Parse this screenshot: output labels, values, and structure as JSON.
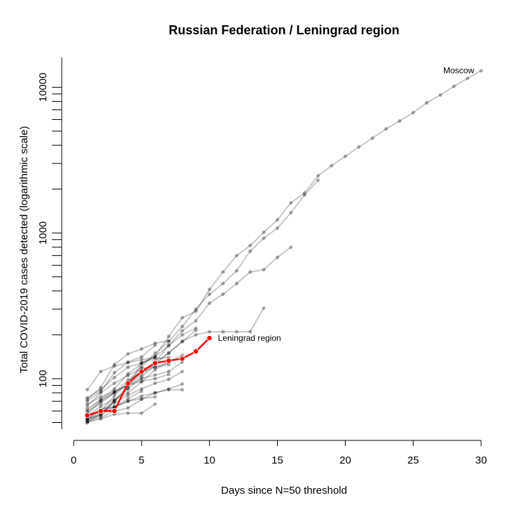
{
  "chart_data": {
    "type": "line",
    "title": "Russian Federation / Leningrad region",
    "xlabel": "Days since N=50 threshold",
    "ylabel": "Total COVID-2019 cases detected (logarithmic scale)",
    "y_scale": "log",
    "xlim": [
      0,
      30
    ],
    "ylim": [
      45,
      16000
    ],
    "x_ticks": [
      0,
      5,
      10,
      15,
      20,
      25,
      30
    ],
    "y_tick_labels": [
      100,
      1000,
      10000
    ],
    "y_minor_ticks": [
      50,
      60,
      70,
      80,
      90,
      200,
      300,
      400,
      500,
      600,
      700,
      800,
      900,
      2000,
      3000,
      4000,
      5000,
      6000,
      7000,
      8000,
      9000
    ],
    "grid": false,
    "highlight_color": "#ff0000",
    "background_color": "#000000",
    "annotations": [
      {
        "text": "Moscow",
        "series": "Moscow"
      },
      {
        "text": "Leningrad region",
        "series": "Leningrad region"
      }
    ],
    "series": [
      {
        "name": "Moscow",
        "highlight": false,
        "x": [
          1,
          2,
          3,
          4,
          5,
          6,
          7,
          8,
          9,
          10,
          11,
          12,
          13,
          14,
          15,
          16,
          17,
          18,
          19,
          20,
          21,
          22,
          23,
          24,
          25,
          26,
          27,
          28,
          29,
          30
        ],
        "y": [
          51,
          56,
          71,
          86,
          129,
          142,
          195,
          262,
          290,
          410,
          540,
          700,
          820,
          1010,
          1230,
          1610,
          1880,
          2470,
          2900,
          3360,
          3890,
          4480,
          5180,
          5870,
          6700,
          7820,
          8850,
          10160,
          11510,
          13000
        ]
      },
      {
        "name": "",
        "highlight": false,
        "x": [
          1,
          2,
          3,
          4,
          5,
          6,
          7,
          8,
          9,
          10,
          11,
          12,
          13,
          14,
          15,
          16,
          17,
          18
        ],
        "y": [
          52,
          60,
          76,
          95,
          120,
          150,
          180,
          228,
          300,
          380,
          450,
          550,
          750,
          920,
          1080,
          1380,
          1820,
          2300
        ]
      },
      {
        "name": "",
        "highlight": false,
        "x": [
          1,
          2,
          3,
          4,
          5,
          6,
          7,
          8,
          9,
          10,
          11,
          12,
          13,
          14,
          15,
          16
        ],
        "y": [
          54,
          60,
          70,
          90,
          106,
          130,
          170,
          213,
          250,
          330,
          380,
          450,
          540,
          560,
          680,
          800
        ]
      },
      {
        "name": "",
        "highlight": false,
        "x": [
          1,
          2,
          3,
          4,
          5,
          6,
          7,
          8,
          9,
          10,
          11,
          12,
          13,
          14
        ],
        "y": [
          53,
          57,
          70,
          85,
          102,
          125,
          150,
          180,
          200,
          210,
          210,
          210,
          210,
          305
        ]
      },
      {
        "name": "",
        "highlight": false,
        "x": [
          1,
          2,
          3,
          4,
          5,
          6,
          7,
          8,
          9
        ],
        "y": [
          59,
          68,
          80,
          92,
          110,
          130,
          150,
          180,
          215
        ]
      },
      {
        "name": "",
        "highlight": false,
        "x": [
          1,
          2,
          3,
          4,
          5,
          6,
          7,
          8,
          9
        ],
        "y": [
          62,
          72,
          85,
          108,
          127,
          142,
          168,
          200,
          222
        ]
      },
      {
        "name": "",
        "highlight": false,
        "x": [
          1,
          2,
          3,
          4,
          5,
          6,
          7,
          8
        ],
        "y": [
          55,
          65,
          72,
          80,
          95,
          115,
          130,
          145
        ]
      },
      {
        "name": "",
        "highlight": false,
        "x": [
          1,
          2,
          3,
          4,
          5,
          6,
          7,
          8
        ],
        "y": [
          50,
          58,
          68,
          77,
          85,
          93,
          99,
          112
        ]
      },
      {
        "name": "",
        "highlight": false,
        "x": [
          1,
          2,
          3,
          4,
          5,
          6,
          7,
          8
        ],
        "y": [
          60,
          71,
          81,
          90,
          100,
          106,
          112,
          130
        ]
      },
      {
        "name": "",
        "highlight": false,
        "x": [
          1,
          2,
          3,
          4,
          5,
          6,
          7
        ],
        "y": [
          65,
          80,
          93,
          105,
          118,
          120,
          130
        ]
      },
      {
        "name": "",
        "highlight": false,
        "x": [
          1,
          2,
          3,
          4,
          5,
          6,
          7
        ],
        "y": [
          67,
          75,
          82,
          90,
          96,
          100,
          107
        ]
      },
      {
        "name": "",
        "highlight": false,
        "x": [
          1,
          2,
          3,
          4,
          5,
          6,
          7
        ],
        "y": [
          57,
          70,
          80,
          98,
          110,
          120,
          125
        ]
      },
      {
        "name": "",
        "highlight": false,
        "x": [
          1,
          2,
          3,
          4,
          5,
          6,
          7,
          8
        ],
        "y": [
          51,
          54,
          60,
          63,
          72,
          80,
          85,
          92
        ]
      },
      {
        "name": "",
        "highlight": false,
        "x": [
          1,
          2,
          3,
          4,
          5,
          6,
          7,
          8
        ],
        "y": [
          56,
          60,
          64,
          70,
          76,
          80,
          84,
          84
        ]
      },
      {
        "name": "",
        "highlight": false,
        "x": [
          1,
          2,
          3,
          4,
          5,
          6,
          7
        ],
        "y": [
          74,
          84,
          102,
          120,
          128,
          137,
          140
        ]
      },
      {
        "name": "",
        "highlight": false,
        "x": [
          1,
          2,
          3,
          4,
          5,
          6
        ],
        "y": [
          84,
          112,
          122,
          129,
          135,
          140
        ]
      },
      {
        "name": "",
        "highlight": false,
        "x": [
          1,
          2,
          3,
          4,
          5,
          6
        ],
        "y": [
          70,
          82,
          110,
          130,
          141,
          170
        ]
      },
      {
        "name": "",
        "highlight": false,
        "x": [
          1,
          2,
          3,
          4,
          5,
          6
        ],
        "y": [
          50,
          53,
          57,
          58,
          58,
          67
        ]
      },
      {
        "name": "",
        "highlight": false,
        "x": [
          1,
          2,
          3,
          4,
          5,
          6
        ],
        "y": [
          53,
          56,
          64,
          70,
          73,
          75
        ]
      },
      {
        "name": "",
        "highlight": false,
        "x": [
          1,
          2,
          3,
          4,
          5,
          6,
          7
        ],
        "y": [
          72,
          87,
          125,
          148,
          160,
          175,
          182
        ]
      },
      {
        "name": "",
        "highlight": false,
        "x": [
          1,
          2,
          3,
          4,
          5
        ],
        "y": [
          53,
          62,
          64,
          73,
          82
        ]
      },
      {
        "name": "Leningrad region",
        "highlight": true,
        "x": [
          1,
          2,
          3,
          4,
          5,
          6,
          7,
          8,
          9,
          10
        ],
        "y": [
          56,
          60,
          60,
          93,
          112,
          128,
          133,
          137,
          154,
          190
        ]
      }
    ]
  }
}
